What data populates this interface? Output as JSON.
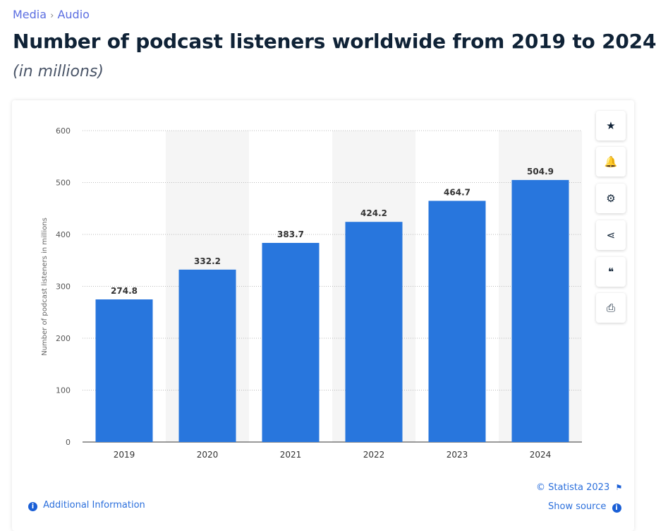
{
  "breadcrumb": {
    "items": [
      "Media",
      "Audio"
    ],
    "separator": "›"
  },
  "header": {
    "title": "Number of podcast listeners worldwide from 2019 to 2024",
    "subtitle": "(in millions)"
  },
  "sidebar_actions": [
    {
      "icon": "star-icon",
      "glyph": "★"
    },
    {
      "icon": "bell-icon",
      "glyph": "🔔"
    },
    {
      "icon": "gear-icon",
      "glyph": "⚙"
    },
    {
      "icon": "share-icon",
      "glyph": "⋖"
    },
    {
      "icon": "quote-icon",
      "glyph": "❝"
    },
    {
      "icon": "print-icon",
      "glyph": "⎙"
    }
  ],
  "footer": {
    "additional_info": "Additional Information",
    "copyright": "© Statista 2023",
    "show_source": "Show source"
  },
  "colors": {
    "bar": "#2876dd",
    "band": "#f5f5f5",
    "link": "#2b6fdc"
  },
  "chart_data": {
    "type": "bar",
    "categories": [
      "2019",
      "2020",
      "2021",
      "2022",
      "2023",
      "2024"
    ],
    "values": [
      274.8,
      332.2,
      383.7,
      424.2,
      464.7,
      504.9
    ],
    "value_labels": [
      "274.8",
      "332.2",
      "383.7",
      "424.2",
      "464.7",
      "504.9"
    ],
    "title": "Number of podcast listeners worldwide from 2019 to 2024",
    "xlabel": "",
    "ylabel": "Number of podcast listeners in millions",
    "ylim": [
      0,
      600
    ],
    "yticks": [
      "0",
      "100",
      "200",
      "300",
      "400",
      "500",
      "600"
    ],
    "grid": true,
    "legend": "none"
  }
}
